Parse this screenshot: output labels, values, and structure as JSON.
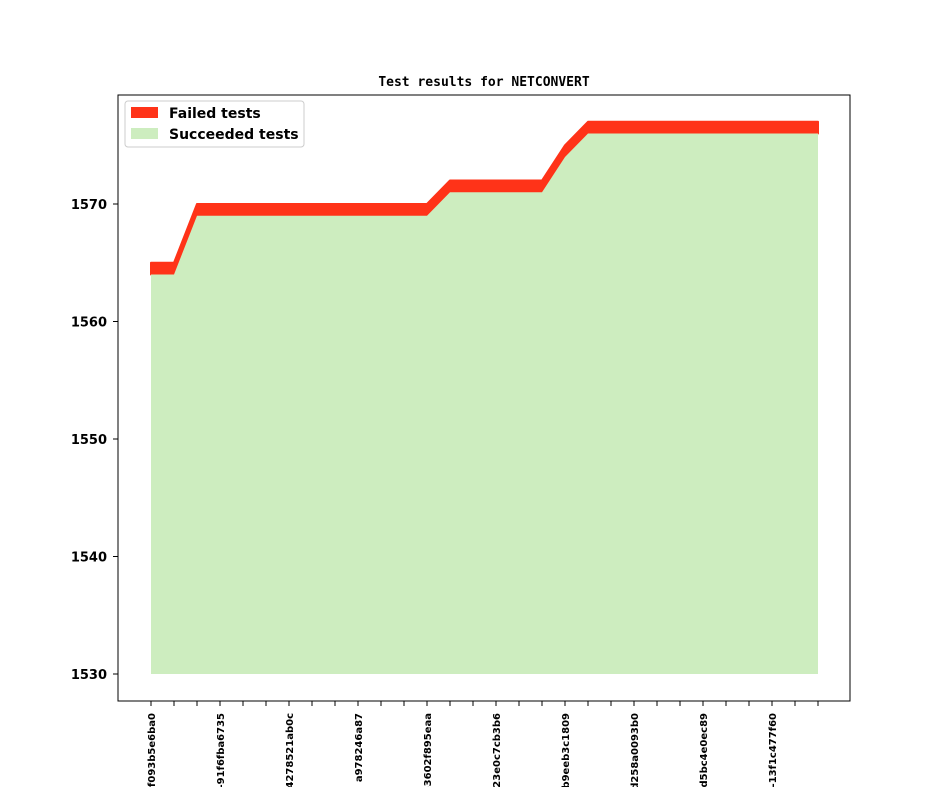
{
  "chart_data": {
    "type": "area",
    "title": "Test results for NETCONVERT",
    "xlabel": "",
    "ylabel": "",
    "ylim": [
      1528,
      1579
    ],
    "yticks": [
      1530,
      1540,
      1550,
      1560,
      1570
    ],
    "grid": false,
    "legend_position": "top-left",
    "x": [
      0,
      1,
      2,
      3,
      4,
      5,
      6,
      7,
      8,
      9,
      10,
      11,
      12,
      13,
      14,
      15,
      16,
      17,
      18,
      19,
      20,
      21,
      22,
      23,
      24,
      25,
      26,
      27,
      28,
      29
    ],
    "xtick_labels": [
      {
        "index": 0,
        "label": "-f093b5e6ba0"
      },
      {
        "index": 3,
        "label": "-91f6fba6735"
      },
      {
        "index": 6,
        "label": "4278521ab0c"
      },
      {
        "index": 9,
        "label": "a978246a87"
      },
      {
        "index": 12,
        "label": "-3602f895eaa"
      },
      {
        "index": 15,
        "label": "23e0c7cb3b6"
      },
      {
        "index": 18,
        "label": "b9eeb3c1809"
      },
      {
        "index": 21,
        "label": "d258a0093b0"
      },
      {
        "index": 24,
        "label": "-d5bc4e0ec89"
      },
      {
        "index": 27,
        "label": "-13f1c477f60"
      }
    ],
    "series": [
      {
        "name": "Succeeded tests",
        "color": "#cdedbf",
        "values": [
          1564,
          1564,
          1569,
          1569,
          1569,
          1569,
          1569,
          1569,
          1569,
          1569,
          1569,
          1569,
          1569,
          1571,
          1571,
          1571,
          1571,
          1571,
          1574,
          1576,
          1576,
          1576,
          1576,
          1576,
          1576,
          1576,
          1576,
          1576,
          1576,
          1576
        ]
      },
      {
        "name": "Failed tests",
        "color": "#ff3318",
        "values": [
          1565,
          1565,
          1570,
          1570,
          1570,
          1570,
          1570,
          1570,
          1570,
          1570,
          1570,
          1570,
          1570,
          1572,
          1572,
          1572,
          1572,
          1572,
          1575,
          1577,
          1577,
          1577,
          1577,
          1577,
          1577,
          1577,
          1577,
          1577,
          1577,
          1577
        ]
      }
    ],
    "baseline": 1530
  }
}
